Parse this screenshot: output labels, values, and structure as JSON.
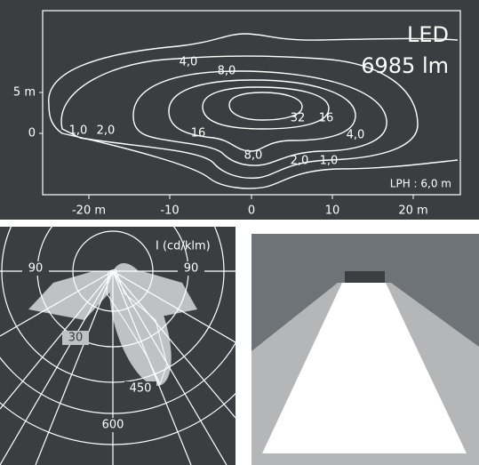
{
  "isolux": {
    "lamp": "LED",
    "flux": "6985 lm",
    "mounting_height": "LPH : 6,0 m",
    "y_labels": [
      "5 m",
      "0"
    ],
    "x_labels": [
      "-20 m",
      "-10",
      "0",
      "10",
      "20 m"
    ],
    "contour_labels": [
      "4,0",
      "8,0",
      "1,0",
      "2,0",
      "16",
      "32",
      "16",
      "4,0",
      "8,0",
      "2,0",
      "1,0"
    ]
  },
  "polar": {
    "unit": "I (cd/klm)",
    "labels": [
      "90",
      "90",
      "30",
      "450",
      "600"
    ]
  }
}
